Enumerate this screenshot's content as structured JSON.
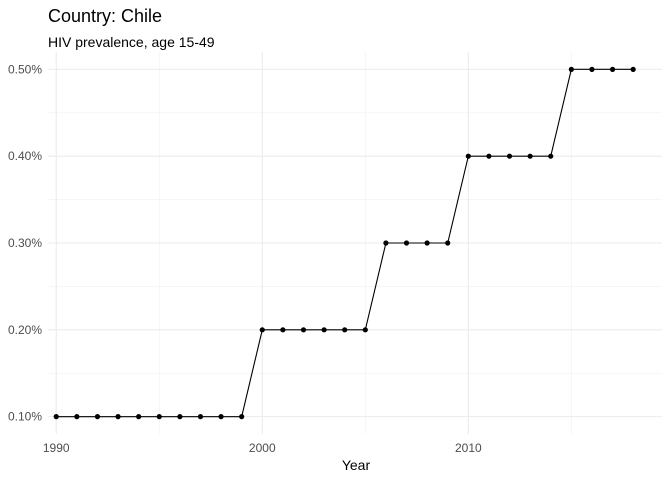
{
  "chart_data": {
    "type": "line",
    "title": "Country: Chile",
    "subtitle": "HIV prevalence, age 15-49",
    "xlabel": "Year",
    "ylabel": "",
    "x": [
      1990,
      1991,
      1992,
      1993,
      1994,
      1995,
      1996,
      1997,
      1998,
      1999,
      2000,
      2001,
      2002,
      2003,
      2004,
      2005,
      2006,
      2007,
      2008,
      2009,
      2010,
      2011,
      2012,
      2013,
      2014,
      2015,
      2016,
      2017,
      2018
    ],
    "series": [
      {
        "values": [
          0.1,
          0.1,
          0.1,
          0.1,
          0.1,
          0.1,
          0.1,
          0.1,
          0.1,
          0.1,
          0.2,
          0.2,
          0.2,
          0.2,
          0.2,
          0.2,
          0.3,
          0.3,
          0.3,
          0.3,
          0.4,
          0.4,
          0.4,
          0.4,
          0.4,
          0.5,
          0.5,
          0.5,
          0.5
        ],
        "color": "#000000"
      }
    ],
    "x_ticks": [
      1990,
      2000,
      2010
    ],
    "x_tick_labels": [
      "1990",
      "2000",
      "2010"
    ],
    "y_ticks": [
      0.1,
      0.2,
      0.3,
      0.4,
      0.5
    ],
    "y_tick_labels": [
      "0.10%",
      "0.20%",
      "0.30%",
      "0.40%",
      "0.50%"
    ],
    "xlim": [
      1989.6,
      2019.4
    ],
    "ylim": [
      0.08,
      0.52
    ],
    "grid": true,
    "legend": "none"
  }
}
